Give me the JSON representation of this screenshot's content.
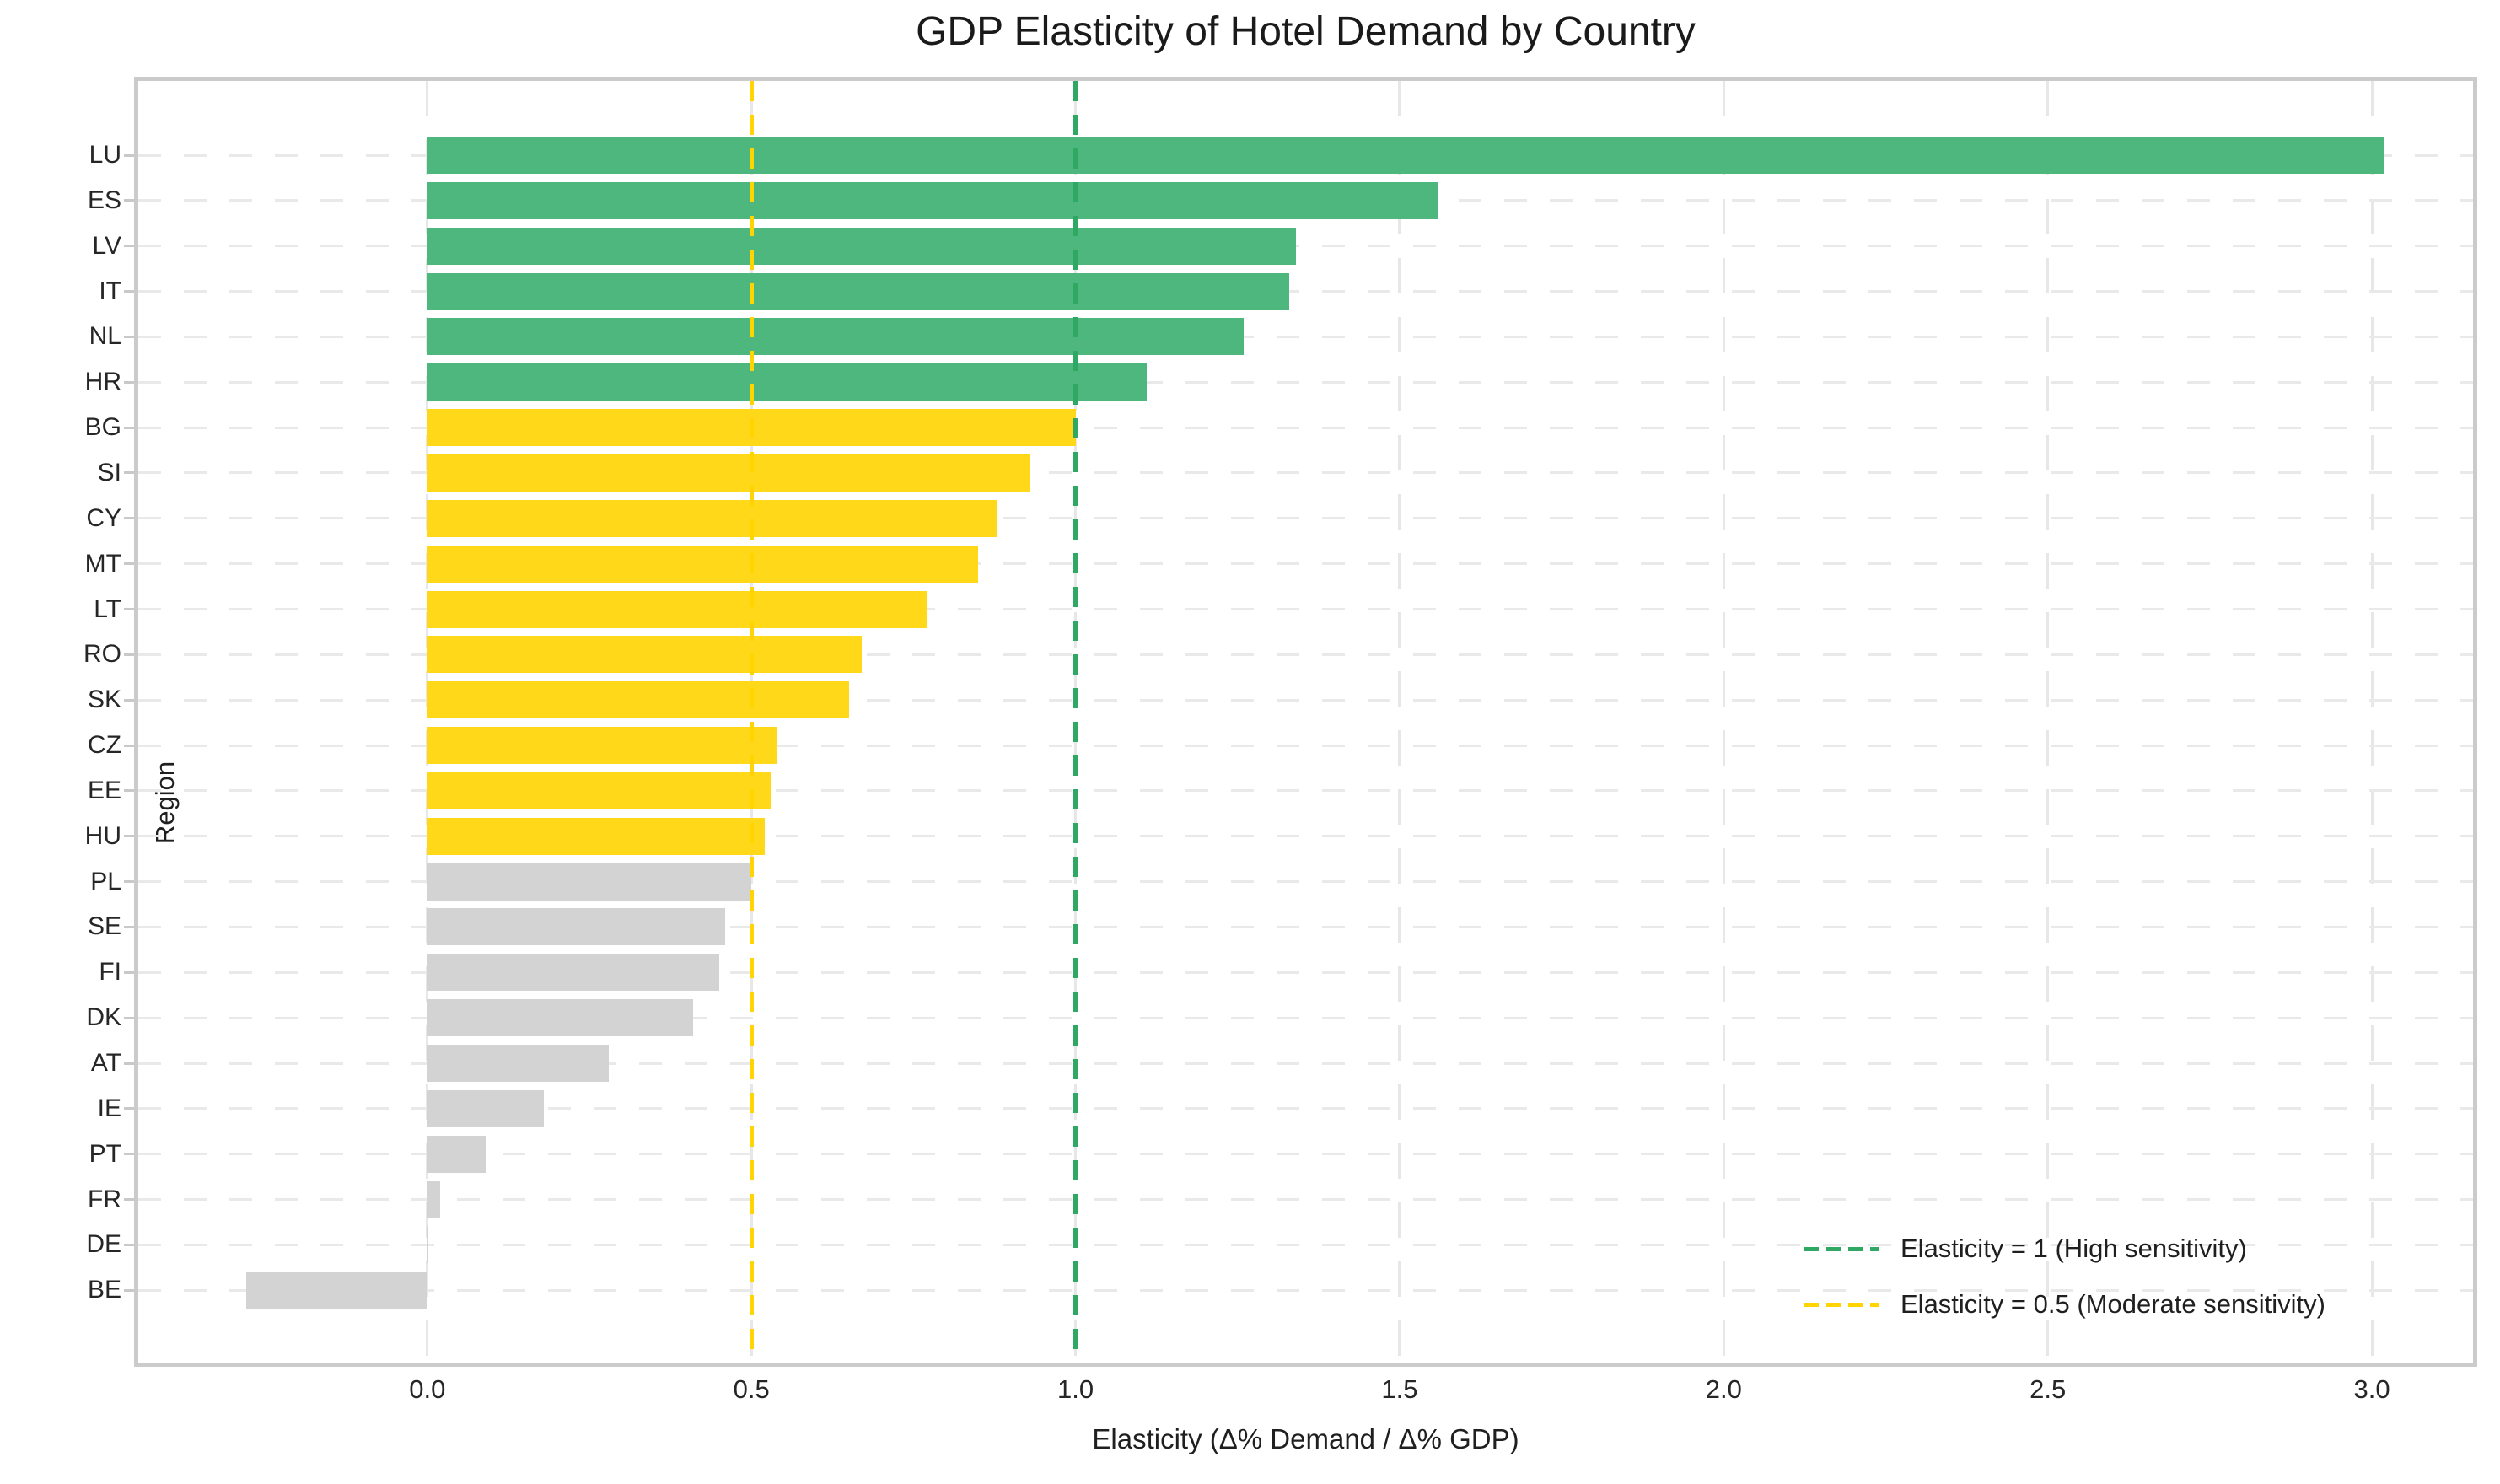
{
  "figure": {
    "title": "GDP Elasticity of Hotel Demand by Country"
  },
  "chart_data": {
    "type": "bar",
    "orientation": "horizontal",
    "title": "GDP Elasticity of Hotel Demand by Country",
    "xlabel": "Elasticity (Δ% Demand / Δ% GDP)",
    "ylabel": "Region",
    "categories": [
      "LU",
      "ES",
      "LV",
      "IT",
      "NL",
      "HR",
      "BG",
      "SI",
      "CY",
      "MT",
      "LT",
      "RO",
      "SK",
      "CZ",
      "EE",
      "HU",
      "PL",
      "SE",
      "FI",
      "DK",
      "AT",
      "IE",
      "PT",
      "FR",
      "DE",
      "BE"
    ],
    "values": [
      3.02,
      1.56,
      1.34,
      1.33,
      1.26,
      1.11,
      1.0,
      0.93,
      0.88,
      0.85,
      0.77,
      0.67,
      0.65,
      0.54,
      0.53,
      0.52,
      0.5,
      0.46,
      0.45,
      0.41,
      0.28,
      0.18,
      0.09,
      0.02,
      0.0,
      -0.28
    ],
    "color_rule": {
      "high_threshold": 1.0,
      "moderate_threshold": 0.5,
      "high_color": "#4db77e",
      "moderate_color": "#ffd81a",
      "low_color": "#d3d3d3"
    },
    "xlim": [
      -0.446,
      3.156
    ],
    "xticks": [
      0.0,
      0.5,
      1.0,
      1.5,
      2.0,
      2.5,
      3.0
    ],
    "xtick_labels": [
      "0.0",
      "0.5",
      "1.0",
      "1.5",
      "2.0",
      "2.5",
      "3.0"
    ],
    "grid": {
      "dashed": true,
      "color": "#e7e7e7",
      "axisbelow": true
    },
    "reference_lines": [
      {
        "value": 1.0,
        "color": "#2fa863",
        "style": "dashed",
        "label": "Elasticity = 1 (High sensitivity)"
      },
      {
        "value": 0.5,
        "color": "#ffd400",
        "style": "dashed",
        "label": "Elasticity = 0.5 (Moderate sensitivity)"
      }
    ],
    "legend_position": "lower right"
  }
}
